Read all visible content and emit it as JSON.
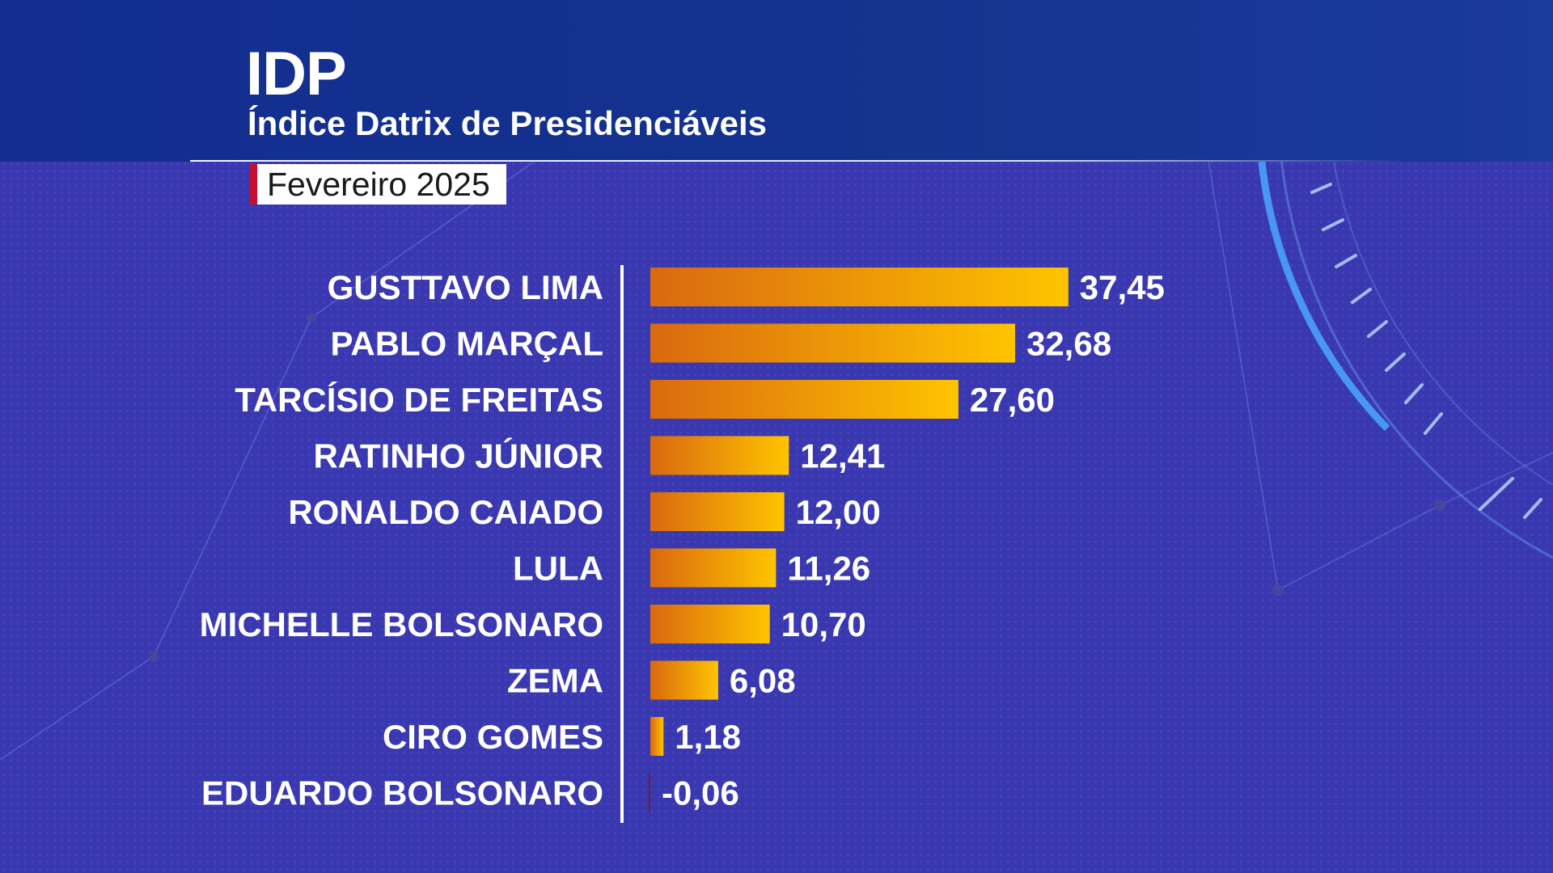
{
  "header": {
    "title": "IDP",
    "subtitle": "Índice Datrix de Presidenciáveis",
    "date_tag": "Fevereiro 2025"
  },
  "colors": {
    "background": "#3a38b0",
    "header_band": "#15338f",
    "bar_gradient_start": "#d9690f",
    "bar_gradient_end": "#ffc400",
    "negative_bar": "#7a1a2e",
    "date_tag_accent": "#c8102e",
    "text": "#ffffff"
  },
  "chart_data": {
    "type": "bar",
    "orientation": "horizontal",
    "categories": [
      "GUSTTAVO LIMA",
      "PABLO MARÇAL",
      "TARCÍSIO DE FREITAS",
      "RATINHO JÚNIOR",
      "RONALDO CAIADO",
      "LULA",
      "MICHELLE BOLSONARO",
      "ZEMA",
      "CIRO GOMES",
      "EDUARDO BOLSONARO"
    ],
    "values": [
      37.45,
      32.68,
      27.6,
      12.41,
      12.0,
      11.26,
      10.7,
      6.08,
      1.18,
      -0.06
    ],
    "value_labels": [
      "37,45",
      "32,68",
      "27,60",
      "12,41",
      "12,00",
      "11,26",
      "10,70",
      "6,08",
      "1,18",
      "-0,06"
    ],
    "xlim": [
      0,
      40
    ],
    "grid": false,
    "legend": "none"
  }
}
